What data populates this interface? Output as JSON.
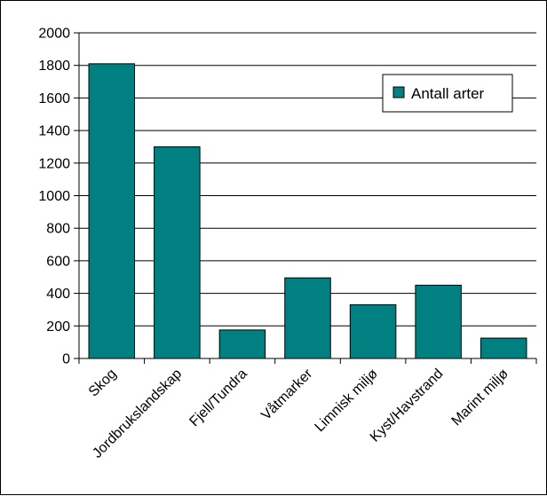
{
  "chart_data": {
    "type": "bar",
    "categories": [
      "Skog",
      "Jordbrukslandskap",
      "Fjell/Tundra",
      "Våtmarker",
      "Limnisk miljø",
      "Kyst/Havstrand",
      "Marint miljø"
    ],
    "series": [
      {
        "name": "Antall arter",
        "values": [
          1810,
          1300,
          175,
          495,
          330,
          450,
          125
        ]
      }
    ],
    "ylim": [
      0,
      2000
    ],
    "yticks": [
      0,
      200,
      400,
      600,
      800,
      1000,
      1200,
      1400,
      1600,
      1800,
      2000
    ],
    "grid": true,
    "legend": "top-right",
    "colors": {
      "bar": "#008080",
      "bar_stroke": "#000000",
      "grid": "#000000"
    }
  }
}
